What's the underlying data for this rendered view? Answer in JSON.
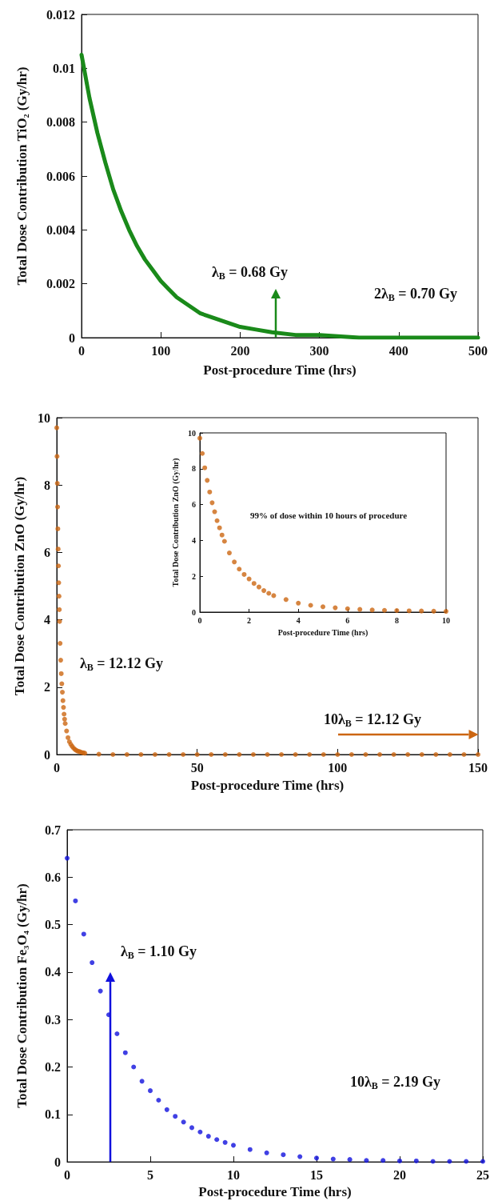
{
  "chart_data": [
    {
      "type": "line",
      "xlabel": "Post-procedure Time (hrs)",
      "ylabel": "Total Dose Contribution TiO₂ (Gy/hr)",
      "x": [
        0,
        10,
        20,
        30,
        40,
        50,
        60,
        70,
        80,
        90,
        100,
        110,
        120,
        130,
        140,
        150,
        160,
        180,
        200,
        220,
        240,
        270,
        300,
        350,
        400,
        450,
        500
      ],
      "series": [
        {
          "color": "#1a8a1a",
          "values": [
            0.0105,
            0.0089,
            0.0076,
            0.0065,
            0.0055,
            0.0047,
            0.004,
            0.0034,
            0.0029,
            0.0025,
            0.0021,
            0.0018,
            0.0015,
            0.0013,
            0.0011,
            0.0009,
            0.0008,
            0.0006,
            0.0004,
            0.0003,
            0.0002,
            0.0001,
            0.0001,
            0,
            0,
            0,
            0
          ]
        }
      ],
      "xlim": [
        0,
        500
      ],
      "xticks": [
        0,
        100,
        200,
        300,
        400,
        500
      ],
      "ylim": [
        0,
        0.012
      ],
      "yticks": [
        0,
        0.002,
        0.004,
        0.006,
        0.008,
        0.01,
        0.012
      ],
      "grid": false,
      "marker": "none",
      "line_style": "solid",
      "ref_lines": [
        {
          "axis": "x",
          "value": 245,
          "color": "#1a8a1a"
        }
      ],
      "annotations": [
        "λ$_{B}$ = 0.68 Gy",
        "2λ$_{B}$ = 0.70 Gy"
      ]
    },
    {
      "type": "scatter",
      "xlabel": "Post-procedure Time (hrs)",
      "ylabel": "Total Dose Contribution ZnO (Gy/hr)",
      "x": [
        0,
        0.1,
        0.2,
        0.3,
        0.4,
        0.5,
        0.6,
        0.7,
        0.8,
        0.9,
        1,
        1.2,
        1.4,
        1.6,
        1.8,
        2,
        2.2,
        2.4,
        2.6,
        2.8,
        3,
        3.5,
        4,
        4.5,
        5,
        5.5,
        6,
        6.5,
        7,
        7.5,
        8,
        8.5,
        9,
        9.5,
        10,
        15,
        20,
        25,
        30,
        35,
        40,
        45,
        50,
        55,
        60,
        65,
        70,
        75,
        80,
        85,
        90,
        95,
        100,
        105,
        110,
        115,
        120,
        125,
        130,
        135,
        140,
        145,
        150
      ],
      "series": [
        {
          "color": "#cc6611",
          "values": [
            9.7,
            8.85,
            8.05,
            7.35,
            6.7,
            6.1,
            5.6,
            5.1,
            4.7,
            4.3,
            3.95,
            3.3,
            2.8,
            2.4,
            2.1,
            1.85,
            1.6,
            1.4,
            1.2,
            1.05,
            0.92,
            0.7,
            0.5,
            0.38,
            0.3,
            0.24,
            0.19,
            0.15,
            0.12,
            0.1,
            0.09,
            0.07,
            0.06,
            0.05,
            0.04,
            0.01,
            0,
            0,
            0,
            0,
            0,
            0,
            0,
            0,
            0,
            0,
            0,
            0,
            0,
            0,
            0,
            0,
            0,
            0,
            0,
            0,
            0,
            0,
            0,
            0,
            0,
            0,
            0
          ]
        }
      ],
      "xlim": [
        0,
        150
      ],
      "xticks": [
        0,
        50,
        100,
        150
      ],
      "ylim": [
        0,
        10
      ],
      "yticks": [
        0,
        2,
        4,
        6,
        8,
        10
      ],
      "grid": false,
      "marker": "circle",
      "ref_lines": [
        {
          "axis": "y",
          "value": 0.6,
          "color": "#cc6611"
        }
      ],
      "annotations": [
        "λ$_{B}$ = 12.12 Gy",
        "10λ$_{B}$ = 12.12 Gy"
      ]
    },
    {
      "type": "scatter",
      "xlabel": "Post-procedure Time (hrs)",
      "ylabel": "Total Dose Contribution ZnO (Gy/hr)",
      "x": [
        0,
        0.1,
        0.2,
        0.3,
        0.4,
        0.5,
        0.6,
        0.7,
        0.8,
        0.9,
        1,
        1.2,
        1.4,
        1.6,
        1.8,
        2,
        2.2,
        2.4,
        2.6,
        2.8,
        3,
        3.5,
        4,
        4.5,
        5,
        5.5,
        6,
        6.5,
        7,
        7.5,
        8,
        8.5,
        9,
        9.5,
        10
      ],
      "series": [
        {
          "color": "#cc6611",
          "values": [
            9.7,
            8.85,
            8.05,
            7.35,
            6.7,
            6.1,
            5.6,
            5.1,
            4.7,
            4.3,
            3.95,
            3.3,
            2.8,
            2.4,
            2.1,
            1.85,
            1.6,
            1.4,
            1.2,
            1.05,
            0.92,
            0.7,
            0.5,
            0.38,
            0.3,
            0.24,
            0.19,
            0.15,
            0.12,
            0.1,
            0.09,
            0.07,
            0.06,
            0.05,
            0.04
          ]
        }
      ],
      "xlim": [
        0,
        10
      ],
      "xticks": [
        0,
        2,
        4,
        6,
        8,
        10
      ],
      "ylim": [
        0,
        10
      ],
      "yticks": [
        0,
        2,
        4,
        6,
        8,
        10
      ],
      "grid": false,
      "marker": "circle",
      "annotations": [
        "99% of dose within 10 hours of procedure"
      ]
    },
    {
      "type": "scatter",
      "xlabel": "Post-procedure Time (hrs)",
      "ylabel": "Total Dose Contribution Fe₃O₄ (Gy/hr)",
      "x": [
        0,
        0.5,
        1,
        1.5,
        2,
        2.5,
        3,
        3.5,
        4,
        4.5,
        5,
        5.5,
        6,
        6.5,
        7,
        7.5,
        8,
        8.5,
        9,
        9.5,
        10,
        11,
        12,
        13,
        14,
        15,
        16,
        17,
        18,
        19,
        20,
        21,
        22,
        23,
        24,
        25
      ],
      "series": [
        {
          "color": "#1010dd",
          "values": [
            0.64,
            0.55,
            0.48,
            0.42,
            0.36,
            0.31,
            0.27,
            0.23,
            0.2,
            0.17,
            0.15,
            0.13,
            0.11,
            0.096,
            0.084,
            0.072,
            0.063,
            0.054,
            0.047,
            0.041,
            0.035,
            0.026,
            0.019,
            0.015,
            0.011,
            0.008,
            0.006,
            0.005,
            0.003,
            0.003,
            0.002,
            0.002,
            0.001,
            0.001,
            0.001,
            0.001
          ]
        }
      ],
      "xlim": [
        0,
        25
      ],
      "xticks": [
        0,
        5,
        10,
        15,
        20,
        25
      ],
      "ylim": [
        0,
        0.7
      ],
      "yticks": [
        0,
        0.1,
        0.2,
        0.3,
        0.4,
        0.5,
        0.6,
        0.7
      ],
      "grid": false,
      "marker": "circle",
      "ref_lines": [
        {
          "axis": "x",
          "value": 2.6,
          "color": "#1010dd"
        }
      ],
      "annotations": [
        "λ$_{B}$ = 1.10 Gy",
        "10λ$_{B}$ = 2.19 Gy"
      ]
    }
  ]
}
